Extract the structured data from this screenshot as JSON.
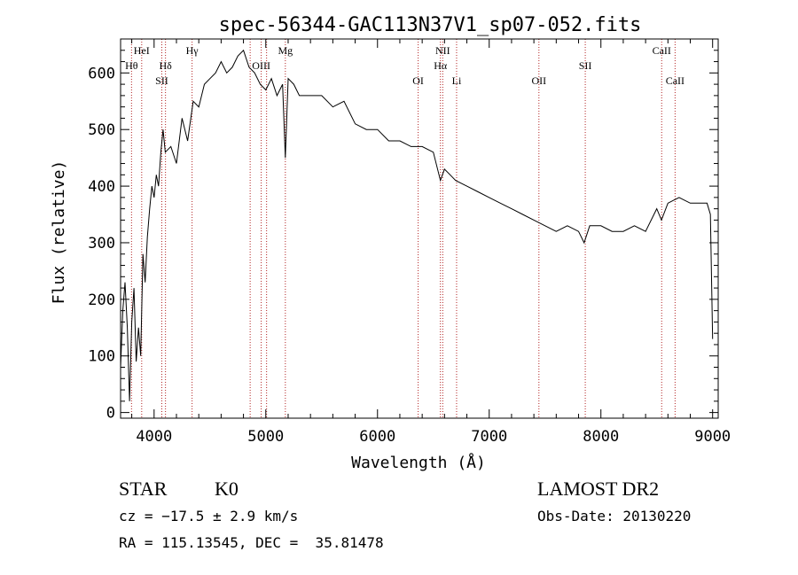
{
  "chart_data": {
    "type": "line",
    "title": "spec-56344-GAC113N37V1_sp07-052.fits",
    "xlabel": "Wavelength (Å)",
    "ylabel": "Flux (relative)",
    "xlim": [
      3700,
      9050
    ],
    "ylim": [
      -10,
      660
    ],
    "xticks": [
      4000,
      5000,
      6000,
      7000,
      8000,
      9000
    ],
    "yticks": [
      0,
      100,
      200,
      300,
      400,
      500,
      600
    ],
    "grid": false,
    "line_color": "#000000",
    "marker_color": "#b22222",
    "lines": [
      {
        "label": "Hθ",
        "x": 3798,
        "row": 1
      },
      {
        "label": "HeI",
        "x": 3889,
        "row": 0
      },
      {
        "label": "SII",
        "x": 4069,
        "row": 2
      },
      {
        "label": "Hδ",
        "x": 4102,
        "row": 1
      },
      {
        "label": "Hγ",
        "x": 4340,
        "row": 0
      },
      {
        "label": "OIII",
        "x": 4959,
        "row": 1
      },
      {
        "label": "Mg",
        "x": 5175,
        "row": 0
      },
      {
        "label": "OI",
        "x": 6364,
        "row": 2
      },
      {
        "label": "NII",
        "x": 6584,
        "row": 0
      },
      {
        "label": "Hα",
        "x": 6563,
        "row": 1
      },
      {
        "label": "Li",
        "x": 6708,
        "row": 2
      },
      {
        "label": "OII",
        "x": 7445,
        "row": 2
      },
      {
        "label": "SII",
        "x": 7860,
        "row": 1
      },
      {
        "label": "CaII",
        "x": 8544,
        "row": 0
      },
      {
        "label": "CaII",
        "x": 8664,
        "row": 2
      }
    ],
    "extra_markers": [
      4860,
      5007
    ],
    "series": [
      {
        "x": [
          3700,
          3720,
          3740,
          3760,
          3780,
          3800,
          3820,
          3840,
          3860,
          3880,
          3900,
          3920,
          3940,
          3960,
          3980,
          4000,
          4020,
          4040,
          4060,
          4080,
          4100,
          4150,
          4200,
          4250,
          4300,
          4350,
          4400,
          4450,
          4500,
          4550,
          4600,
          4650,
          4700,
          4750,
          4800,
          4850,
          4900,
          4950,
          5000,
          5050,
          5100,
          5150,
          5175,
          5200,
          5250,
          5300,
          5400,
          5500,
          5600,
          5700,
          5800,
          5900,
          6000,
          6100,
          6200,
          6300,
          6400,
          6500,
          6563,
          6600,
          6700,
          6800,
          6900,
          7000,
          7100,
          7200,
          7300,
          7400,
          7500,
          7600,
          7700,
          7800,
          7850,
          7900,
          8000,
          8100,
          8200,
          8300,
          8400,
          8500,
          8542,
          8600,
          8700,
          8800,
          8900,
          8950,
          8980,
          9000
        ],
        "y": [
          80,
          180,
          230,
          150,
          20,
          160,
          220,
          90,
          150,
          100,
          280,
          230,
          310,
          360,
          400,
          380,
          420,
          400,
          460,
          500,
          460,
          470,
          440,
          520,
          480,
          550,
          540,
          580,
          590,
          600,
          620,
          600,
          610,
          630,
          640,
          610,
          600,
          580,
          570,
          590,
          560,
          580,
          450,
          590,
          580,
          560,
          560,
          560,
          540,
          550,
          510,
          500,
          500,
          480,
          480,
          470,
          470,
          460,
          410,
          430,
          410,
          400,
          390,
          380,
          370,
          360,
          350,
          340,
          330,
          320,
          330,
          320,
          300,
          330,
          330,
          320,
          320,
          330,
          320,
          360,
          340,
          370,
          380,
          370,
          370,
          370,
          350,
          130
        ]
      }
    ]
  },
  "info": {
    "object_class": "STAR",
    "subclass": "K0",
    "survey": "LAMOST DR2",
    "redshift_line": "cz = −17.5 ± 2.9 km/s",
    "obs_date_line": "Obs-Date: 20130220",
    "coords_line": "RA = 115.13545, DEC =  35.81478"
  }
}
